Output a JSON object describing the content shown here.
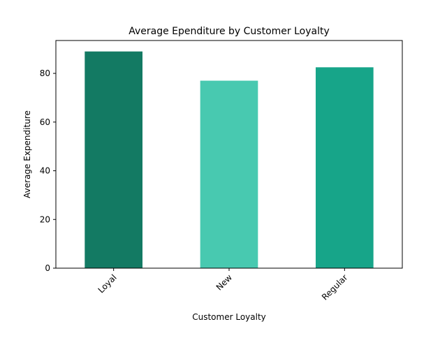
{
  "chart_data": {
    "type": "bar",
    "title": "Average Ependiture by Customer Loyalty",
    "xlabel": "Customer Loyalty",
    "ylabel": "Average Expenditure",
    "categories": [
      "Loyal",
      "New",
      "Regular"
    ],
    "values": [
      89.0,
      77.0,
      82.5
    ],
    "bar_colors": [
      "#137a63",
      "#48c9b0",
      "#17a589"
    ],
    "ylim": [
      0,
      93.5
    ],
    "yticks": [
      0,
      20,
      40,
      60,
      80
    ],
    "x_tick_rotation_deg": 45,
    "grid": false,
    "legend": "none"
  }
}
